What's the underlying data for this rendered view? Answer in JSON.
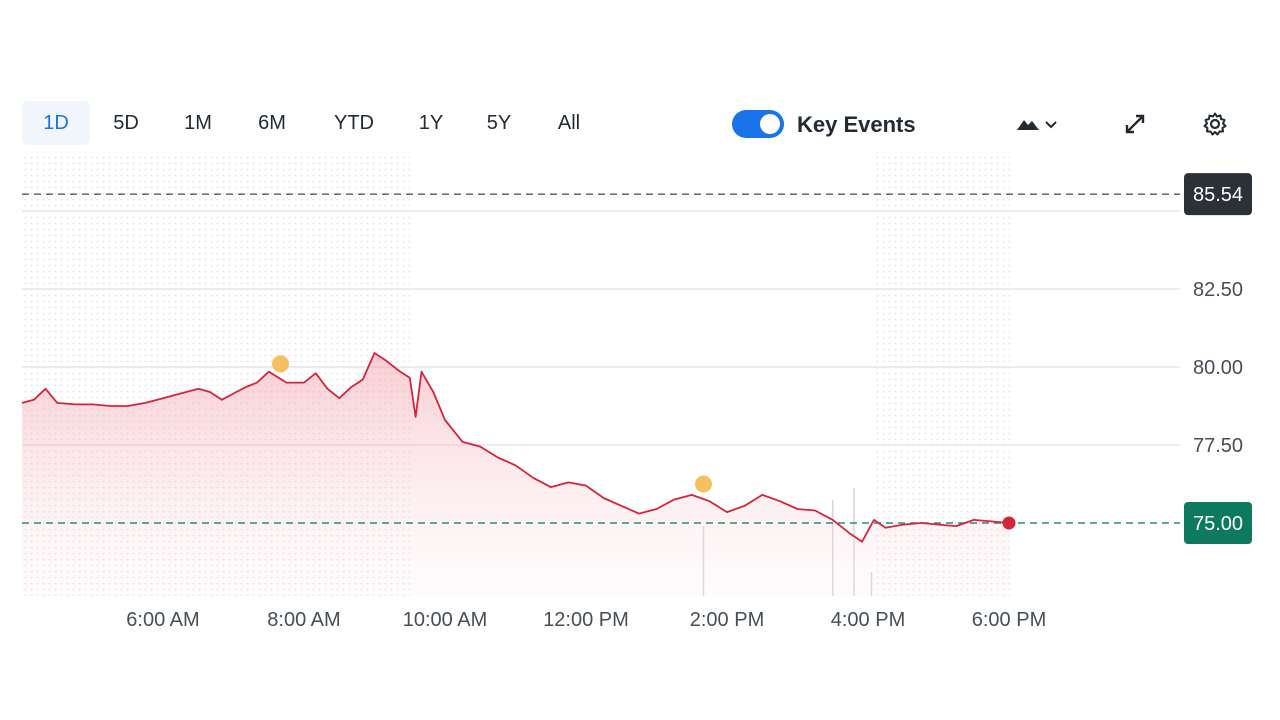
{
  "toolbar": {
    "ranges": [
      "1D",
      "5D",
      "1M",
      "6M",
      "YTD",
      "1Y",
      "5Y",
      "All"
    ],
    "active_range": "1D",
    "key_events_label": "Key Events",
    "key_events_on": true,
    "icons": [
      "mountain-chart-icon",
      "chevron-down-icon",
      "expand-icon",
      "gear-icon"
    ]
  },
  "colors": {
    "line": "#d6253b",
    "accent": "#1a73e8",
    "event_marker": "#f6c060",
    "last_price_bg": "#0d7a5f",
    "high_price_bg": "#2b3137"
  },
  "chart_data": {
    "type": "line",
    "x_axis": "time",
    "x_ticks": [
      "6:00 AM",
      "8:00 AM",
      "10:00 AM",
      "12:00 PM",
      "2:00 PM",
      "4:00 PM",
      "6:00 PM"
    ],
    "y_ticks": [
      "82.50",
      "80.00",
      "77.50"
    ],
    "ylim": [
      72.8,
      86.5
    ],
    "reference_lines": [
      {
        "label": "85.54",
        "value": 85.54,
        "style": "dashed-dark"
      },
      {
        "label": "75.00",
        "value": 75.0,
        "style": "dashed-green"
      }
    ],
    "sessions": {
      "premarket": [
        "4:00 AM",
        "9:30 AM"
      ],
      "regular": [
        "9:30 AM",
        "4:00 PM"
      ],
      "after_hours": [
        "4:00 PM",
        "6:00 PM"
      ]
    },
    "key_events": [
      {
        "time": "7:40 AM",
        "value": 80.1
      },
      {
        "time": "1:40 PM",
        "value": 76.25
      }
    ],
    "series": [
      {
        "points": [
          [
            "4:00 AM",
            78.85
          ],
          [
            "4:10 AM",
            78.95
          ],
          [
            "4:20 AM",
            79.3
          ],
          [
            "4:30 AM",
            78.85
          ],
          [
            "4:45 AM",
            78.8
          ],
          [
            "5:00 AM",
            78.8
          ],
          [
            "5:15 AM",
            78.75
          ],
          [
            "5:30 AM",
            78.75
          ],
          [
            "5:45 AM",
            78.85
          ],
          [
            "6:00 AM",
            79.0
          ],
          [
            "6:15 AM",
            79.15
          ],
          [
            "6:30 AM",
            79.3
          ],
          [
            "6:40 AM",
            79.2
          ],
          [
            "6:50 AM",
            78.95
          ],
          [
            "7:00 AM",
            79.15
          ],
          [
            "7:10 AM",
            79.35
          ],
          [
            "7:20 AM",
            79.5
          ],
          [
            "7:30 AM",
            79.85
          ],
          [
            "7:45 AM",
            79.5
          ],
          [
            "8:00 AM",
            79.5
          ],
          [
            "8:10 AM",
            79.8
          ],
          [
            "8:20 AM",
            79.3
          ],
          [
            "8:30 AM",
            79.0
          ],
          [
            "8:40 AM",
            79.35
          ],
          [
            "8:50 AM",
            79.6
          ],
          [
            "9:00 AM",
            80.45
          ],
          [
            "9:10 AM",
            80.2
          ],
          [
            "9:20 AM",
            79.9
          ],
          [
            "9:30 AM",
            79.65
          ],
          [
            "9:35 AM",
            78.4
          ],
          [
            "9:40 AM",
            79.85
          ],
          [
            "9:50 AM",
            79.2
          ],
          [
            "10:00 AM",
            78.3
          ],
          [
            "10:15 AM",
            77.6
          ],
          [
            "10:30 AM",
            77.45
          ],
          [
            "10:45 AM",
            77.1
          ],
          [
            "11:00 AM",
            76.85
          ],
          [
            "11:15 AM",
            76.45
          ],
          [
            "11:30 AM",
            76.15
          ],
          [
            "11:45 AM",
            76.3
          ],
          [
            "12:00 PM",
            76.2
          ],
          [
            "12:15 PM",
            75.8
          ],
          [
            "12:30 PM",
            75.55
          ],
          [
            "12:45 PM",
            75.3
          ],
          [
            "1:00 PM",
            75.45
          ],
          [
            "1:15 PM",
            75.75
          ],
          [
            "1:30 PM",
            75.9
          ],
          [
            "1:45 PM",
            75.7
          ],
          [
            "2:00 PM",
            75.35
          ],
          [
            "2:15 PM",
            75.55
          ],
          [
            "2:30 PM",
            75.9
          ],
          [
            "2:45 PM",
            75.7
          ],
          [
            "3:00 PM",
            75.45
          ],
          [
            "3:15 PM",
            75.4
          ],
          [
            "3:30 PM",
            75.1
          ],
          [
            "3:45 PM",
            74.65
          ],
          [
            "3:55 PM",
            74.4
          ],
          [
            "4:00 PM",
            74.75
          ],
          [
            "4:05 PM",
            75.1
          ],
          [
            "4:15 PM",
            74.85
          ],
          [
            "4:30 PM",
            74.95
          ],
          [
            "4:45 PM",
            75.0
          ],
          [
            "5:00 PM",
            74.95
          ],
          [
            "5:15 PM",
            74.9
          ],
          [
            "5:30 PM",
            75.1
          ],
          [
            "5:45 PM",
            75.05
          ],
          [
            "6:00 PM",
            75.0
          ]
        ]
      }
    ]
  }
}
